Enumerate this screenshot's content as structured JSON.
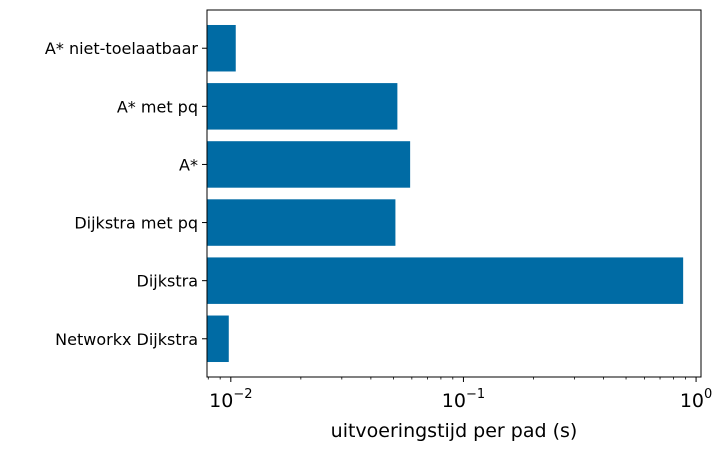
{
  "chart_data": {
    "type": "bar",
    "orientation": "horizontal",
    "title": "",
    "xlabel": "uitvoeringstijd per pad (s)",
    "ylabel": "",
    "xscale": "log",
    "xlim": [
      0.0079,
      1.05
    ],
    "x_ticks": [
      {
        "base": "10",
        "exp": "−2"
      },
      {
        "base": "10",
        "exp": "−1"
      },
      {
        "base": "10",
        "exp": "0"
      }
    ],
    "categories": [
      "A* niet-toelaatbaar",
      "A* met pq",
      "A*",
      "Dijkstra met pq",
      "Dijkstra",
      "Networkx Dijkstra"
    ],
    "values": [
      0.0105,
      0.052,
      0.059,
      0.051,
      0.88,
      0.0098
    ],
    "bar_color": "#006ba4",
    "grid": false,
    "legend": "none"
  }
}
